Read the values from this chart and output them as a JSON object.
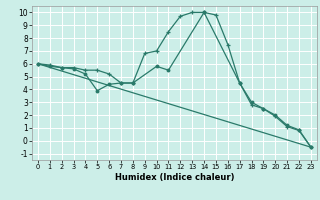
{
  "xlabel": "Humidex (Indice chaleur)",
  "bg_color": "#cceee8",
  "grid_color": "#aaddcc",
  "line_color": "#2a7a6a",
  "xlim": [
    -0.5,
    23.5
  ],
  "ylim": [
    -1.5,
    10.5
  ],
  "xticks": [
    0,
    1,
    2,
    3,
    4,
    5,
    6,
    7,
    8,
    9,
    10,
    11,
    12,
    13,
    14,
    15,
    16,
    17,
    18,
    19,
    20,
    21,
    22,
    23
  ],
  "yticks": [
    -1,
    0,
    1,
    2,
    3,
    4,
    5,
    6,
    7,
    8,
    9,
    10
  ],
  "line1_x": [
    0,
    1,
    2,
    3,
    4,
    5,
    6,
    7,
    8,
    9,
    10,
    11,
    12,
    13,
    14,
    15,
    16,
    17,
    18,
    19,
    20,
    21,
    22,
    23
  ],
  "line1_y": [
    6.0,
    5.9,
    5.7,
    5.7,
    5.5,
    5.5,
    5.2,
    4.5,
    4.5,
    6.8,
    7.0,
    8.5,
    9.7,
    10.0,
    10.0,
    9.8,
    7.5,
    4.5,
    2.8,
    2.5,
    1.9,
    1.1,
    0.8,
    -0.5
  ],
  "line2_x": [
    0,
    1,
    2,
    3,
    4,
    5,
    6,
    7,
    8,
    10,
    11,
    14,
    17,
    18,
    19,
    20,
    21,
    22,
    23
  ],
  "line2_y": [
    6.0,
    5.8,
    5.7,
    5.6,
    5.2,
    3.9,
    4.4,
    4.5,
    4.5,
    5.8,
    5.5,
    10.0,
    4.5,
    3.0,
    2.5,
    2.0,
    1.2,
    0.85,
    -0.5
  ],
  "line3_x": [
    0,
    23
  ],
  "line3_y": [
    6.0,
    -0.5
  ]
}
